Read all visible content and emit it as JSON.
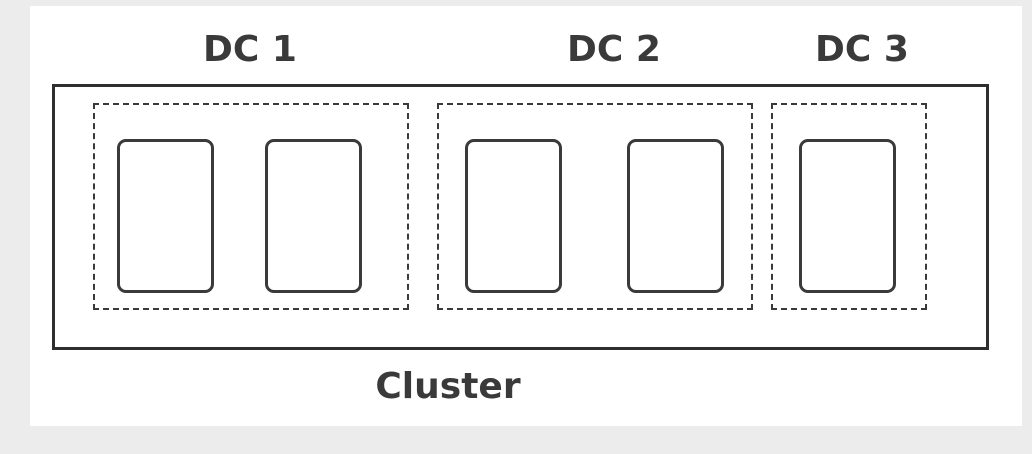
{
  "diagram": {
    "cluster": {
      "label": "Cluster"
    },
    "datacenters": [
      {
        "label": "DC 1",
        "node_count": 2
      },
      {
        "label": "DC 2",
        "node_count": 2
      },
      {
        "label": "DC 3",
        "node_count": 1
      }
    ]
  },
  "colors": {
    "background": "#ececec",
    "sheet": "#ffffff",
    "stroke": "#2e2e2e",
    "text": "#3a3a3a"
  }
}
